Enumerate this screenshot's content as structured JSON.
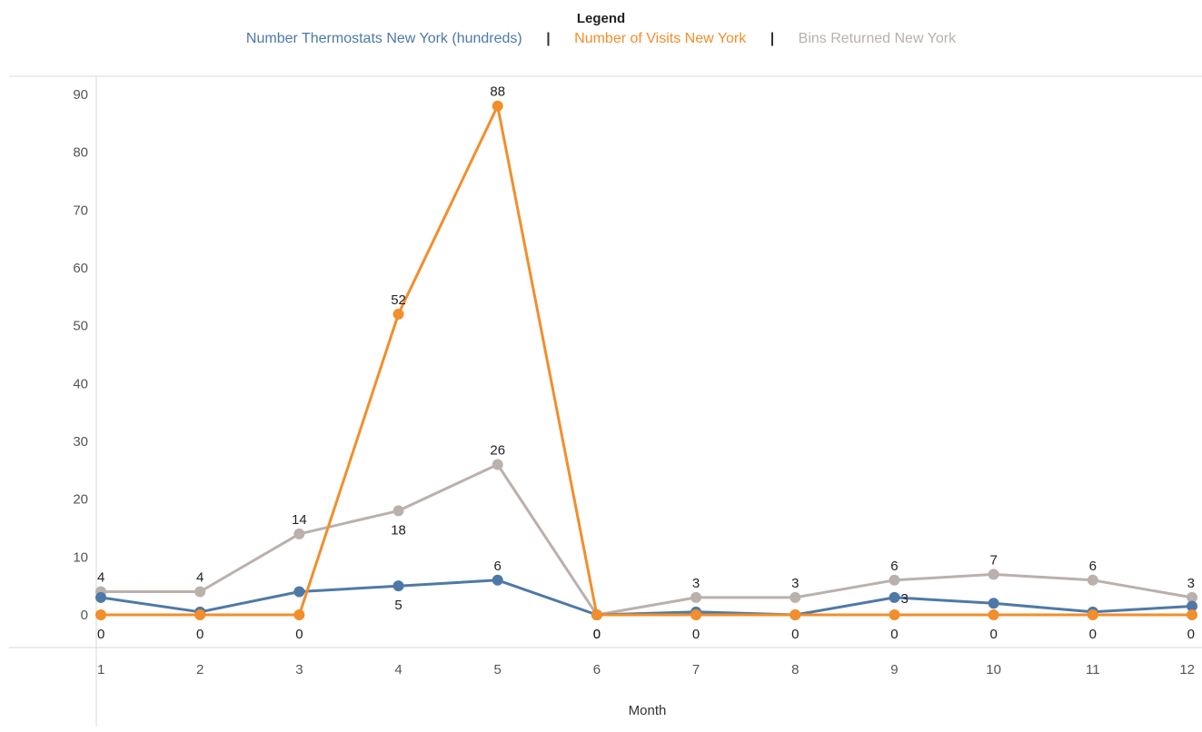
{
  "legend": {
    "title": "Legend",
    "separator": "|"
  },
  "chart_data": {
    "type": "line",
    "title": "",
    "xlabel": "Month",
    "ylabel": "",
    "categories": [
      "1",
      "2",
      "3",
      "4",
      "5",
      "6",
      "7",
      "8",
      "9",
      "10",
      "11",
      "12"
    ],
    "ylim": [
      0,
      90
    ],
    "yticks": [
      0,
      10,
      20,
      30,
      40,
      50,
      60,
      70,
      80,
      90
    ],
    "grid": false,
    "legend_position": "top-center",
    "series": [
      {
        "name": "Number Thermostats New York (hundreds)",
        "color": "#4e79a7",
        "values": [
          3,
          0.5,
          4,
          5,
          6,
          0,
          0.5,
          0,
          3,
          2,
          0.5,
          1.5
        ],
        "labels": [
          "",
          "",
          "",
          "5",
          "6",
          "",
          "",
          "",
          "3",
          "",
          "",
          ""
        ],
        "label_position": [
          "",
          "",
          "",
          "below",
          "above",
          "",
          "",
          "",
          "right",
          "",
          "",
          ""
        ]
      },
      {
        "name": "Number of Visits New York",
        "color": "#f28e2b",
        "values": [
          0,
          0,
          0,
          52,
          88,
          0,
          0,
          0,
          0,
          0,
          0,
          0
        ],
        "labels": [
          "0",
          "0",
          "0",
          "52",
          "88",
          "0",
          "0",
          "0",
          "0",
          "0",
          "0",
          "0"
        ],
        "label_position": [
          "below",
          "below",
          "below",
          "above",
          "above",
          "below",
          "below",
          "below",
          "below",
          "below",
          "below",
          "below"
        ]
      },
      {
        "name": "Bins Returned New York",
        "color": "#bab0ac",
        "values": [
          4,
          4,
          14,
          18,
          26,
          0,
          3,
          3,
          6,
          7,
          6,
          3
        ],
        "labels": [
          "4",
          "4",
          "14",
          "18",
          "26",
          "0",
          "3",
          "3",
          "6",
          "7",
          "6",
          "3"
        ],
        "label_position": [
          "above",
          "above",
          "above",
          "below",
          "above",
          "below",
          "above",
          "above",
          "above",
          "above",
          "above",
          "above"
        ]
      }
    ]
  }
}
